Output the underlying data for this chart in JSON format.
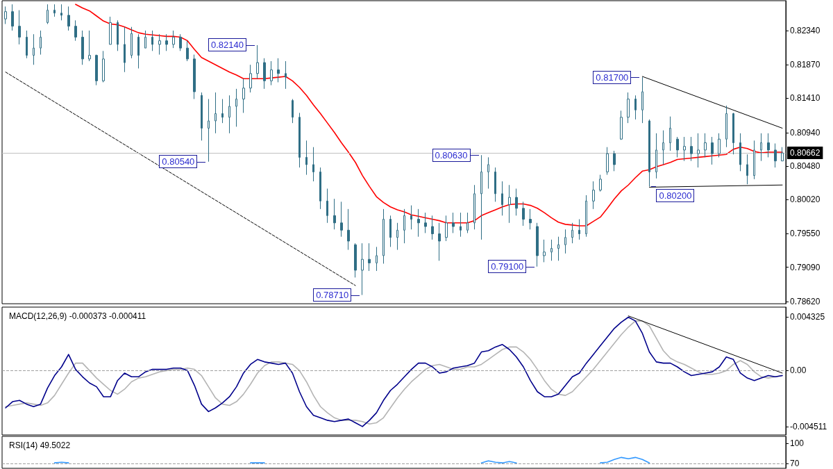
{
  "chart_data": [
    {
      "type": "candlestick",
      "color": "#2f6e85",
      "marker": "none",
      "grid": false,
      "tick_labels": "y",
      "categories": [
        null,
        null,
        null,
        null,
        null,
        null,
        null,
        null,
        null,
        null,
        null,
        null,
        null,
        null,
        null,
        null,
        null,
        null,
        null,
        null,
        null,
        null,
        null,
        null,
        null,
        null,
        null,
        null,
        null,
        null,
        null,
        null,
        null,
        null,
        null,
        null,
        null,
        null,
        null,
        null,
        null,
        null,
        null,
        null,
        null,
        null,
        null,
        null,
        null,
        null,
        null,
        null,
        null,
        null,
        null,
        null,
        null,
        null,
        null,
        null,
        null,
        null,
        null,
        null,
        null,
        null,
        null,
        null,
        null,
        null,
        null,
        null,
        null,
        null,
        null,
        null,
        null,
        null,
        null,
        null,
        null,
        null,
        null,
        null,
        null,
        null,
        null,
        null,
        null,
        null,
        null,
        null,
        null,
        null,
        null,
        null,
        null,
        null,
        null,
        null,
        null,
        null,
        null,
        null,
        null,
        null,
        null,
        null,
        null,
        null,
        null,
        null
      ],
      "ohlc": [
        [
          0.825,
          0.8267,
          0.8243,
          0.826
        ],
        [
          0.826,
          0.827,
          0.8234,
          0.824
        ],
        [
          0.824,
          0.8262,
          0.8215,
          0.8225
        ],
        [
          0.8225,
          0.8234,
          0.8196,
          0.82
        ],
        [
          0.82,
          0.8229,
          0.8187,
          0.821
        ],
        [
          0.821,
          0.8234,
          0.8201,
          0.8225
        ],
        [
          0.8245,
          0.827,
          0.8243,
          0.8262
        ],
        [
          0.8262,
          0.827,
          0.8253,
          0.8258
        ],
        [
          0.8258,
          0.827,
          0.8248,
          0.8255
        ],
        [
          0.8255,
          0.8267,
          0.8234,
          0.824
        ],
        [
          0.824,
          0.8248,
          0.822,
          0.8225
        ],
        [
          0.8225,
          0.8234,
          0.8187,
          0.8195
        ],
        [
          0.8195,
          0.8234,
          0.8192,
          0.82
        ],
        [
          0.82,
          0.8201,
          0.8159,
          0.8165
        ],
        [
          0.8165,
          0.8206,
          0.8163,
          0.8195
        ],
        [
          0.8215,
          0.8253,
          0.8215,
          0.8245
        ],
        [
          0.8245,
          0.8248,
          0.8206,
          0.8215
        ],
        [
          0.8215,
          0.8239,
          0.8177,
          0.819
        ],
        [
          0.82,
          0.8239,
          0.8196,
          0.823
        ],
        [
          0.8225,
          0.8229,
          0.8182,
          0.82
        ],
        [
          0.821,
          0.8234,
          0.821,
          0.8225
        ],
        [
          0.8225,
          0.8234,
          0.8206,
          0.8215
        ],
        [
          0.8215,
          0.8229,
          0.8201,
          0.822
        ],
        [
          0.822,
          0.8229,
          0.8206,
          0.8215
        ],
        [
          0.8215,
          0.8234,
          0.821,
          0.8225
        ],
        [
          0.8225,
          0.8229,
          0.8206,
          0.821
        ],
        [
          0.821,
          0.822,
          0.8192,
          0.8195
        ],
        [
          0.8195,
          0.8201,
          0.814,
          0.815
        ],
        [
          0.8145,
          0.8149,
          0.8083,
          0.81
        ],
        [
          0.81,
          0.814,
          0.8054,
          0.811
        ],
        [
          0.811,
          0.8149,
          0.8093,
          0.812
        ],
        [
          0.812,
          0.814,
          0.8107,
          0.8115
        ],
        [
          0.8115,
          0.8145,
          0.8093,
          0.813
        ],
        [
          0.813,
          0.8154,
          0.8102,
          0.814
        ],
        [
          0.814,
          0.8168,
          0.8121,
          0.8155
        ],
        [
          0.8155,
          0.8187,
          0.8149,
          0.8175
        ],
        [
          0.8175,
          0.8214,
          0.8168,
          0.819
        ],
        [
          0.819,
          0.8196,
          0.8154,
          0.8165
        ],
        [
          0.8165,
          0.8192,
          0.8159,
          0.818
        ],
        [
          0.818,
          0.8196,
          0.8163,
          0.8175
        ],
        [
          0.8175,
          0.8192,
          0.8154,
          0.817
        ],
        [
          0.8138,
          0.814,
          0.8107,
          0.8115
        ],
        [
          0.8115,
          0.8121,
          0.8046,
          0.806
        ],
        [
          0.806,
          0.8083,
          0.8036,
          0.805
        ],
        [
          0.805,
          0.8074,
          0.8027,
          0.804
        ],
        [
          0.804,
          0.8046,
          0.7989,
          0.8
        ],
        [
          0.8,
          0.8017,
          0.797,
          0.798
        ],
        [
          0.798,
          0.8003,
          0.7961,
          0.797
        ],
        [
          0.797,
          0.7999,
          0.7951,
          0.796
        ],
        [
          0.796,
          0.7989,
          0.7933,
          0.7945
        ],
        [
          0.794,
          0.7942,
          0.7895,
          0.7905
        ],
        [
          0.7905,
          0.7942,
          0.7871,
          0.792
        ],
        [
          0.792,
          0.7942,
          0.7904,
          0.7915
        ],
        [
          0.7915,
          0.7937,
          0.7904,
          0.7925
        ],
        [
          0.7925,
          0.7989,
          0.7914,
          0.7975
        ],
        [
          0.7975,
          0.798,
          0.7937,
          0.795
        ],
        [
          0.795,
          0.797,
          0.7933,
          0.796
        ],
        [
          0.796,
          0.7989,
          0.7942,
          0.798
        ],
        [
          0.798,
          0.7994,
          0.7961,
          0.7975
        ],
        [
          0.7975,
          0.7989,
          0.7951,
          0.797
        ],
        [
          0.797,
          0.7984,
          0.7956,
          0.7965
        ],
        [
          0.7965,
          0.798,
          0.7947,
          0.7955
        ],
        [
          0.7955,
          0.797,
          0.7918,
          0.7945
        ],
        [
          0.795,
          0.798,
          0.7945,
          0.797
        ],
        [
          0.797,
          0.7984,
          0.7956,
          0.7965
        ],
        [
          0.7965,
          0.7984,
          0.7951,
          0.796
        ],
        [
          0.796,
          0.7984,
          0.7956,
          0.797
        ],
        [
          0.797,
          0.8022,
          0.7961,
          0.801
        ],
        [
          0.801,
          0.8063,
          0.7947,
          0.804
        ],
        [
          0.804,
          0.806,
          0.8017,
          0.805
        ],
        [
          0.804,
          0.8046,
          0.7999,
          0.801
        ],
        [
          0.801,
          0.8027,
          0.798,
          0.7995
        ],
        [
          0.7995,
          0.8022,
          0.797,
          0.8005
        ],
        [
          0.8005,
          0.8017,
          0.798,
          0.799
        ],
        [
          0.799,
          0.7999,
          0.7966,
          0.7975
        ],
        [
          0.7975,
          0.7989,
          0.7961,
          0.797
        ],
        [
          0.7965,
          0.797,
          0.791,
          0.7925
        ],
        [
          0.7925,
          0.7947,
          0.7916,
          0.793
        ],
        [
          0.793,
          0.7947,
          0.7918,
          0.7935
        ],
        [
          0.7935,
          0.7951,
          0.7918,
          0.794
        ],
        [
          0.794,
          0.7961,
          0.7928,
          0.795
        ],
        [
          0.795,
          0.797,
          0.7942,
          0.796
        ],
        [
          0.796,
          0.7975,
          0.7947,
          0.7955
        ],
        [
          0.7955,
          0.8008,
          0.7951,
          0.8
        ],
        [
          0.8,
          0.8027,
          0.7989,
          0.8015
        ],
        [
          0.8015,
          0.8036,
          0.8013,
          0.803
        ],
        [
          0.804,
          0.8074,
          0.8036,
          0.8065
        ],
        [
          0.8065,
          0.8069,
          0.8041,
          0.805
        ],
        [
          0.8085,
          0.8124,
          0.8084,
          0.8115
        ],
        [
          0.8115,
          0.8149,
          0.8107,
          0.814
        ],
        [
          0.814,
          0.8145,
          0.8112,
          0.8125
        ],
        [
          0.8125,
          0.817,
          0.8107,
          0.815
        ],
        [
          0.811,
          0.8112,
          0.802,
          0.804
        ],
        [
          0.804,
          0.8093,
          0.8031,
          0.807
        ],
        [
          0.807,
          0.8097,
          0.805,
          0.808
        ],
        [
          0.808,
          0.8116,
          0.8069,
          0.81
        ],
        [
          0.8085,
          0.8088,
          0.806,
          0.807
        ],
        [
          0.807,
          0.8088,
          0.8055,
          0.8075
        ],
        [
          0.8075,
          0.8088,
          0.8055,
          0.8065
        ],
        [
          0.8065,
          0.8093,
          0.8046,
          0.807
        ],
        [
          0.807,
          0.8093,
          0.806,
          0.808
        ],
        [
          0.808,
          0.8088,
          0.805,
          0.8065
        ],
        [
          0.8065,
          0.8093,
          0.806,
          0.8085
        ],
        [
          0.8085,
          0.8131,
          0.8074,
          0.812
        ],
        [
          0.812,
          0.8121,
          0.8064,
          0.808
        ],
        [
          0.808,
          0.8093,
          0.8041,
          0.805
        ],
        [
          0.805,
          0.8064,
          0.8023,
          0.8035
        ],
        [
          0.8035,
          0.8083,
          0.803,
          0.807
        ],
        [
          0.807,
          0.8093,
          0.8055,
          0.808
        ],
        [
          0.808,
          0.8093,
          0.806,
          0.807
        ],
        [
          0.807,
          0.8079,
          0.8046,
          0.8055
        ],
        [
          0.8055,
          0.8074,
          0.8055,
          0.8066
        ]
      ],
      "series": [
        {
          "type": "line",
          "color": "#ff0000",
          "values": [
            null,
            null,
            null,
            null,
            null,
            null,
            null,
            null,
            null,
            null,
            0.827,
            0.8265,
            0.8261,
            0.8254,
            0.8247,
            0.8243,
            0.8242,
            0.8239,
            0.8235,
            0.8231,
            0.8229,
            0.8228,
            0.8227,
            0.8226,
            0.8226,
            0.8225,
            0.822,
            0.8208,
            0.8197,
            0.8192,
            0.8187,
            0.8182,
            0.8177,
            0.8173,
            0.8168,
            0.8168,
            0.8168,
            0.8168,
            0.8169,
            0.817,
            0.8171,
            0.8165,
            0.8156,
            0.8145,
            0.8132,
            0.812,
            0.8107,
            0.8094,
            0.808,
            0.8067,
            0.8053,
            0.8035,
            0.802,
            0.8006,
            0.7998,
            0.7992,
            0.7988,
            0.7985,
            0.7981,
            0.7979,
            0.7977,
            0.7975,
            0.7973,
            0.797,
            0.797,
            0.797,
            0.797,
            0.7973,
            0.798,
            0.7984,
            0.7988,
            0.7992,
            0.7995,
            0.7996,
            0.7996,
            0.7994,
            0.799,
            0.7984,
            0.7977,
            0.7971,
            0.7968,
            0.7967,
            0.7966,
            0.7966,
            0.7972,
            0.7978,
            0.799,
            0.8003,
            0.8014,
            0.8022,
            0.8032,
            0.8041,
            0.8043,
            0.8047,
            0.805,
            0.8053,
            0.8057,
            0.8058,
            0.8059,
            0.806,
            0.8061,
            0.8062,
            0.8063,
            0.8064,
            0.8071,
            0.8074,
            0.8072,
            0.8068,
            0.8066,
            0.8067,
            0.8067,
            0.8067
          ]
        },
        {
          "type": "line",
          "color": "#000000",
          "line_style": "dashed",
          "values": [
            0.8177,
            null,
            null,
            null,
            null,
            null,
            null,
            null,
            null,
            null,
            null,
            null,
            null,
            null,
            null,
            null,
            null,
            null,
            null,
            null,
            null,
            null,
            null,
            null,
            null,
            null,
            null,
            null,
            null,
            null,
            null,
            null,
            null,
            null,
            null,
            null,
            null,
            null,
            null,
            null,
            null,
            null,
            null,
            null,
            null,
            null,
            null,
            null,
            null,
            null,
            0.7884,
            null,
            null,
            null,
            null,
            null,
            null,
            null,
            null,
            null,
            null,
            null,
            null,
            null,
            null,
            null,
            null,
            null,
            null,
            null,
            null,
            null,
            null,
            null,
            null,
            null,
            null,
            null,
            null,
            null,
            null,
            null,
            null,
            null,
            null,
            null,
            null,
            null,
            null,
            null,
            null,
            null,
            null,
            null,
            null,
            null,
            null,
            null,
            null,
            null,
            null,
            null,
            null,
            null,
            null,
            null,
            null,
            null,
            null,
            null,
            null,
            null
          ]
        },
        {
          "type": "line",
          "color": "#000000",
          "line_style": "solid",
          "values": [
            null,
            null,
            null,
            null,
            null,
            null,
            null,
            null,
            null,
            null,
            null,
            null,
            null,
            null,
            null,
            null,
            null,
            null,
            null,
            null,
            null,
            null,
            null,
            null,
            null,
            null,
            null,
            null,
            null,
            null,
            null,
            null,
            null,
            null,
            null,
            null,
            null,
            null,
            null,
            null,
            null,
            null,
            null,
            null,
            null,
            null,
            null,
            null,
            null,
            null,
            null,
            null,
            null,
            null,
            null,
            null,
            null,
            null,
            null,
            null,
            null,
            null,
            null,
            null,
            null,
            null,
            null,
            null,
            null,
            null,
            null,
            null,
            null,
            null,
            null,
            null,
            null,
            null,
            null,
            null,
            null,
            null,
            null,
            null,
            null,
            null,
            null,
            null,
            null,
            null,
            null,
            0.8171,
            null,
            null,
            null,
            null,
            null,
            null,
            null,
            null,
            null,
            null,
            null,
            null,
            null,
            null,
            null,
            null,
            null,
            null,
            null,
            0.81
          ]
        },
        {
          "type": "line",
          "color": "#000000",
          "line_style": "solid",
          "values": [
            null,
            null,
            null,
            null,
            null,
            null,
            null,
            null,
            null,
            null,
            null,
            null,
            null,
            null,
            null,
            null,
            null,
            null,
            null,
            null,
            null,
            null,
            null,
            null,
            null,
            null,
            null,
            null,
            null,
            null,
            null,
            null,
            null,
            null,
            null,
            null,
            null,
            null,
            null,
            null,
            null,
            null,
            null,
            null,
            null,
            null,
            null,
            null,
            null,
            null,
            null,
            null,
            null,
            null,
            null,
            null,
            null,
            null,
            null,
            null,
            null,
            null,
            null,
            null,
            null,
            null,
            null,
            null,
            null,
            null,
            null,
            null,
            null,
            null,
            null,
            null,
            null,
            null,
            null,
            null,
            null,
            null,
            null,
            null,
            null,
            null,
            null,
            null,
            null,
            null,
            null,
            null,
            0.8019,
            null,
            null,
            null,
            null,
            null,
            null,
            null,
            null,
            null,
            null,
            null,
            null,
            null,
            null,
            null,
            null,
            null,
            null,
            0.8022
          ]
        }
      ],
      "ylim": [
        0.7859,
        0.8275
      ],
      "yticks": [
        {
          "value": 0.7862,
          "label": "0.78620"
        },
        {
          "value": 0.7909,
          "label": "0.79090"
        },
        {
          "value": 0.7955,
          "label": "0.79550"
        },
        {
          "value": 0.8002,
          "label": "0.80020"
        },
        {
          "value": 0.8048,
          "label": "0.80480"
        },
        {
          "value": 0.8094,
          "label": "0.80940"
        },
        {
          "value": 0.8141,
          "label": "0.81410"
        },
        {
          "value": 0.8187,
          "label": "0.81870"
        },
        {
          "value": 0.8234,
          "label": "0.82340"
        }
      ],
      "ref_lines": [
        {
          "axis": "y",
          "value": 0.80662,
          "label": "0.80662",
          "color": "#c0c0c0"
        }
      ],
      "annotations": [
        "0.82140",
        "0.80540",
        "0.78710",
        "0.80630",
        "0.79100",
        "0.81700",
        "0.80200"
      ]
    },
    {
      "type": "line",
      "title": "MACD(12,26,9) -0.000373 -0.000411",
      "marker": "none",
      "grid": false,
      "tick_labels": "y",
      "categories": [
        null,
        null,
        null,
        null,
        null,
        null,
        null,
        null,
        null,
        null,
        null,
        null,
        null,
        null,
        null,
        null,
        null,
        null,
        null,
        null,
        null,
        null,
        null,
        null,
        null,
        null,
        null,
        null,
        null,
        null,
        null,
        null,
        null,
        null,
        null,
        null,
        null,
        null,
        null,
        null,
        null,
        null,
        null,
        null,
        null,
        null,
        null,
        null,
        null,
        null,
        null,
        null,
        null,
        null,
        null,
        null,
        null,
        null,
        null,
        null,
        null,
        null,
        null,
        null,
        null,
        null,
        null,
        null,
        null,
        null,
        null,
        null,
        null,
        null,
        null,
        null,
        null,
        null,
        null,
        null,
        null,
        null,
        null,
        null,
        null,
        null,
        null,
        null,
        null,
        null,
        null,
        null,
        null,
        null,
        null,
        null,
        null,
        null,
        null,
        null,
        null,
        null,
        null,
        null,
        null,
        null,
        null,
        null,
        null,
        null,
        null,
        null
      ],
      "series": [
        {
          "color": "#b4b4b4",
          "values": [
            -0.0029,
            -0.0028,
            -0.0027,
            -0.0026,
            -0.0027,
            -0.0028,
            -0.0026,
            -0.002,
            -0.0011,
            -0.0002,
            0.0006,
            0.0006,
            0.0,
            -0.0006,
            -0.0011,
            -0.0016,
            -0.0019,
            -0.0015,
            -0.0009,
            -0.0006,
            -0.0005,
            -0.0003,
            -0.0001,
            0.0,
            0.0001,
            0.0001,
            0.0002,
            0.0001,
            -0.0004,
            -0.0013,
            -0.0022,
            -0.0027,
            -0.0028,
            -0.0025,
            -0.0019,
            -0.0011,
            -0.0002,
            0.0004,
            0.0007,
            0.0007,
            0.0006,
            0.0005,
            0.0,
            -0.0009,
            -0.002,
            -0.0029,
            -0.0034,
            -0.0038,
            -0.004,
            -0.004,
            -0.004,
            -0.0041,
            -0.0043,
            -0.0042,
            -0.0038,
            -0.003,
            -0.0022,
            -0.0015,
            -0.0009,
            -0.0004,
            0.0001,
            0.0004,
            0.0005,
            0.0003,
            0.0001,
            0.0001,
            0.0003,
            0.0003,
            0.0005,
            0.0009,
            0.0013,
            0.0017,
            0.0019,
            0.0019,
            0.0015,
            0.0009,
            0.0001,
            -0.0008,
            -0.0015,
            -0.0019,
            -0.002,
            -0.0017,
            -0.0011,
            -0.0005,
            0.0001,
            0.0008,
            0.0015,
            0.0022,
            0.0029,
            0.0035,
            0.004,
            0.004,
            0.0036,
            0.0026,
            0.0016,
            0.001,
            0.0007,
            0.0005,
            0.0002,
            -0.0001,
            -0.0003,
            -0.0003,
            -0.0002,
            0.0,
            0.0005,
            0.0008,
            0.0005,
            -0.0001,
            -0.0005,
            -0.0006,
            -0.0005,
            -0.0004
          ]
        },
        {
          "color": "#00008b",
          "values": [
            -0.003,
            -0.0025,
            -0.0024,
            -0.0027,
            -0.0029,
            -0.0027,
            -0.0014,
            -0.0004,
            0.0003,
            0.0013,
            0.0001,
            -0.0005,
            -0.001,
            -0.0013,
            -0.0021,
            -0.0021,
            -0.0008,
            -0.0002,
            -0.0005,
            -0.0005,
            -0.0001,
            0.0001,
            0.0001,
            0.0001,
            0.0002,
            0.0002,
            0.0,
            -0.0012,
            -0.0027,
            -0.0033,
            -0.003,
            -0.0026,
            -0.0021,
            -0.0013,
            -0.0002,
            0.0005,
            0.0009,
            0.0007,
            0.0006,
            0.0005,
            0.0006,
            -0.0002,
            -0.0017,
            -0.0029,
            -0.0036,
            -0.0038,
            -0.004,
            -0.0041,
            -0.004,
            -0.0039,
            -0.0042,
            -0.0045,
            -0.004,
            -0.0034,
            -0.0024,
            -0.0016,
            -0.0011,
            -0.0005,
            0.0001,
            0.0006,
            0.0006,
            0.0003,
            -0.0002,
            -0.0001,
            0.0002,
            0.0003,
            0.0004,
            0.0006,
            0.0015,
            0.0016,
            0.0019,
            0.0021,
            0.0017,
            0.0011,
            0.0003,
            -0.0008,
            -0.0017,
            -0.0021,
            -0.0021,
            -0.0019,
            -0.0012,
            -0.0005,
            -0.0002,
            0.0006,
            0.0013,
            0.002,
            0.0027,
            0.0034,
            0.0039,
            0.0043,
            0.004,
            0.003,
            0.0015,
            0.0007,
            0.0006,
            0.0006,
            0.0003,
            -0.0001,
            -0.0004,
            -0.0003,
            -0.0002,
            -0.0001,
            0.0003,
            0.0011,
            0.0009,
            -0.0002,
            -0.0006,
            -0.0008,
            -0.0006,
            -0.0004,
            -0.0005,
            -0.0004
          ]
        },
        {
          "color": "#000000",
          "line_style": "solid",
          "values": [
            null,
            null,
            null,
            null,
            null,
            null,
            null,
            null,
            null,
            null,
            null,
            null,
            null,
            null,
            null,
            null,
            null,
            null,
            null,
            null,
            null,
            null,
            null,
            null,
            null,
            null,
            null,
            null,
            null,
            null,
            null,
            null,
            null,
            null,
            null,
            null,
            null,
            null,
            null,
            null,
            null,
            null,
            null,
            null,
            null,
            null,
            null,
            null,
            null,
            null,
            null,
            null,
            null,
            null,
            null,
            null,
            null,
            null,
            null,
            null,
            null,
            null,
            null,
            null,
            null,
            null,
            null,
            null,
            null,
            null,
            null,
            null,
            null,
            null,
            null,
            null,
            null,
            null,
            null,
            null,
            null,
            null,
            null,
            null,
            null,
            null,
            null,
            null,
            null,
            0.0044,
            null,
            null,
            null,
            null,
            null,
            null,
            null,
            null,
            null,
            null,
            null,
            null,
            null,
            null,
            null,
            null,
            null,
            null,
            null,
            null,
            null,
            -0.0002
          ]
        }
      ],
      "ylim": [
        -0.00518,
        0.00511
      ],
      "yticks": [
        -0.004511,
        {
          "value": 0,
          "label": "0.00"
        },
        0.004325
      ],
      "ref_lines": [
        {
          "axis": "y",
          "value": 0,
          "color": "#a0a0a0",
          "line_style": "dashed"
        }
      ]
    },
    {
      "type": "line",
      "title": "RSI(14) 49.5022",
      "marker": "none",
      "grid": false,
      "tick_labels": "y",
      "categories": [
        null,
        null,
        null,
        null,
        null,
        null,
        null,
        null,
        null,
        null,
        null,
        null,
        null,
        null,
        null,
        null,
        null,
        null,
        null,
        null,
        null,
        null,
        null,
        null,
        null,
        null,
        null,
        null,
        null,
        null,
        null,
        null,
        null,
        null,
        null,
        null,
        null,
        null,
        null,
        null,
        null,
        null,
        null,
        null,
        null,
        null,
        null,
        null,
        null,
        null,
        null,
        null,
        null,
        null,
        null,
        null,
        null,
        null,
        null,
        null,
        null,
        null,
        null,
        null,
        null,
        null,
        null,
        null,
        null,
        null,
        null,
        null,
        null,
        null,
        null,
        null,
        null,
        null,
        null,
        null,
        null,
        null,
        null,
        null,
        null,
        null,
        null,
        null,
        null,
        null,
        null,
        null,
        null,
        null,
        null,
        null,
        null,
        null,
        null,
        null,
        null,
        null,
        null,
        null,
        null,
        null,
        null,
        null,
        null,
        null,
        null,
        null
      ],
      "series": [
        {
          "color": "#3399ff",
          "values": [
            null,
            null,
            null,
            null,
            null,
            null,
            null,
            71,
            72,
            71,
            null,
            null,
            null,
            null,
            null,
            null,
            null,
            null,
            null,
            null,
            null,
            null,
            null,
            null,
            null,
            null,
            null,
            null,
            null,
            null,
            null,
            null,
            null,
            null,
            null,
            71,
            71,
            71,
            null,
            null,
            null,
            null,
            null,
            null,
            null,
            null,
            null,
            null,
            null,
            null,
            null,
            null,
            null,
            null,
            null,
            null,
            null,
            null,
            null,
            null,
            null,
            null,
            null,
            null,
            null,
            null,
            null,
            null,
            71,
            74,
            72,
            71,
            73,
            71,
            null,
            null,
            null,
            null,
            null,
            null,
            null,
            null,
            null,
            null,
            null,
            71,
            72,
            76,
            79,
            77,
            79,
            76,
            71,
            null,
            null,
            null,
            null,
            null,
            null,
            null,
            null,
            null,
            null,
            null,
            null,
            null,
            null,
            null,
            null,
            null,
            null,
            null
          ]
        }
      ],
      "ylim": [
        63,
        110
      ],
      "yticks": [
        70,
        100
      ],
      "ref_lines": [
        {
          "axis": "y",
          "value": 70,
          "color": "#a0a0a0",
          "line_style": "dashed"
        }
      ]
    }
  ]
}
